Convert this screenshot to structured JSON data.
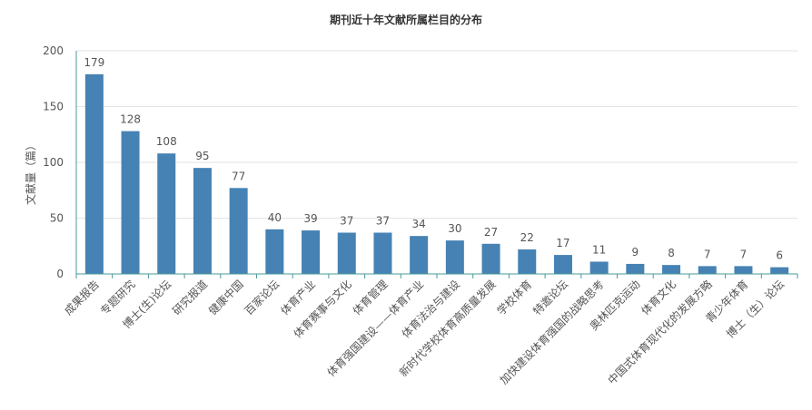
{
  "chart_data": {
    "type": "bar",
    "title": "期刊近十年文献所属栏目的分布",
    "xlabel": "",
    "ylabel": "文献量（篇）",
    "ylim": [
      0,
      200
    ],
    "yticks": [
      0,
      50,
      100,
      150,
      200
    ],
    "grid": true,
    "legend": "none",
    "categories": [
      "成果报告",
      "专题研究",
      "博士(生)论坛",
      "研究报道",
      "健康中国",
      "百家论坛",
      "体育产业",
      "体育赛事与文化",
      "体育管理",
      "体育强国建设——体育产业",
      "体育法治与建设",
      "新时代学校体育高质量发展",
      "学校体育",
      "特邀论坛",
      "加快建设体育强国的战略思考",
      "奥林匹克运动",
      "体育文化",
      "中国式体育现代化的发展方略",
      "青少年体育",
      "博士（生）论坛"
    ],
    "values": [
      179,
      128,
      108,
      95,
      77,
      40,
      39,
      37,
      37,
      34,
      30,
      27,
      22,
      17,
      11,
      9,
      8,
      7,
      7,
      6
    ],
    "bar_color": "#4682b4",
    "grid_color": "#e3e3e3",
    "axis_color": "#4a9a9a"
  }
}
